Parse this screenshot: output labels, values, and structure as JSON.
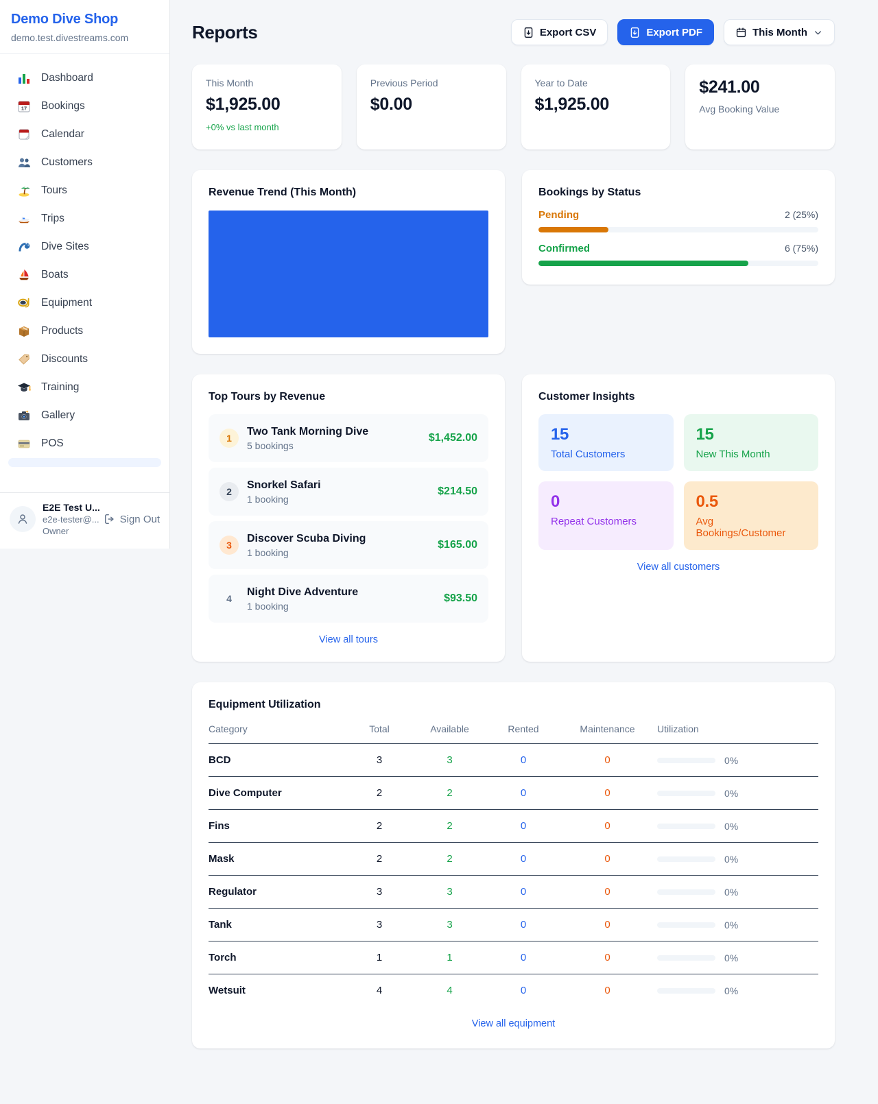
{
  "app": {
    "name": "Demo Dive Shop",
    "domain": "demo.test.divestreams.com"
  },
  "sidebar": {
    "items": [
      {
        "label": "Dashboard",
        "icon": "bar-chart-icon"
      },
      {
        "label": "Bookings",
        "icon": "calendar-date-icon"
      },
      {
        "label": "Calendar",
        "icon": "tear-off-calendar-icon"
      },
      {
        "label": "Customers",
        "icon": "people-icon"
      },
      {
        "label": "Tours",
        "icon": "island-icon"
      },
      {
        "label": "Trips",
        "icon": "speedboat-icon"
      },
      {
        "label": "Dive Sites",
        "icon": "wave-icon"
      },
      {
        "label": "Boats",
        "icon": "sailboat-icon"
      },
      {
        "label": "Equipment",
        "icon": "dive-mask-icon"
      },
      {
        "label": "Products",
        "icon": "package-icon"
      },
      {
        "label": "Discounts",
        "icon": "tag-icon"
      },
      {
        "label": "Training",
        "icon": "graduation-cap-icon"
      },
      {
        "label": "Gallery",
        "icon": "camera-icon"
      },
      {
        "label": "POS",
        "icon": "credit-card-icon"
      }
    ]
  },
  "user": {
    "name": "E2E Test U...",
    "email": "e2e-tester@...",
    "role": "Owner",
    "sign_out_label": "Sign Out"
  },
  "header": {
    "title": "Reports",
    "export_csv_label": "Export CSV",
    "export_pdf_label": "Export PDF",
    "period_label": "This Month"
  },
  "stats": [
    {
      "label": "This Month",
      "value": "$1,925.00",
      "sub": "+0% vs last month"
    },
    {
      "label": "Previous Period",
      "value": "$0.00"
    },
    {
      "label": "Year to Date",
      "value": "$1,925.00"
    },
    {
      "label": "Avg Booking Value",
      "value": "$241.00"
    }
  ],
  "revenue_trend": {
    "title": "Revenue Trend (This Month)",
    "fill_color": "#2563eb"
  },
  "bookings_by_status": {
    "title": "Bookings by Status",
    "rows": [
      {
        "label": "Pending",
        "value": "2 (25%)",
        "pct": 25,
        "color": "#d97706"
      },
      {
        "label": "Confirmed",
        "value": "6 (75%)",
        "pct": 75,
        "color": "#16a34a"
      }
    ]
  },
  "top_tours": {
    "title": "Top Tours by Revenue",
    "view_all": "View all tours",
    "rows": [
      {
        "rank": "1",
        "name": "Two Tank Morning Dive",
        "bookings": "5 bookings",
        "amount": "$1,452.00",
        "badge_bg": "#fdf3d8",
        "badge_color": "#d97706"
      },
      {
        "rank": "2",
        "name": "Snorkel Safari",
        "bookings": "1 booking",
        "amount": "$214.50",
        "badge_bg": "#e9ecf0",
        "badge_color": "#334155"
      },
      {
        "rank": "3",
        "name": "Discover Scuba Diving",
        "bookings": "1 booking",
        "amount": "$165.00",
        "badge_bg": "#ffe8d1",
        "badge_color": "#ea580c"
      },
      {
        "rank": "4",
        "name": "Night Dive Adventure",
        "bookings": "1 booking",
        "amount": "$93.50",
        "badge_bg": "transparent",
        "badge_color": "#64748b"
      }
    ]
  },
  "customer_insights": {
    "title": "Customer Insights",
    "view_all": "View all customers",
    "tiles": [
      {
        "value": "15",
        "label": "Total Customers",
        "color": "#2563eb",
        "bg": "#eaf2fe"
      },
      {
        "value": "15",
        "label": "New This Month",
        "color": "#16a34a",
        "bg": "#e9f8ef"
      },
      {
        "value": "0",
        "label": "Repeat Customers",
        "color": "#9333ea",
        "bg": "#f6ecfe"
      },
      {
        "value": "0.5",
        "label": "Avg Bookings/Customer",
        "color": "#ea580c",
        "bg": "#fdeacd"
      }
    ]
  },
  "equipment": {
    "title": "Equipment Utilization",
    "view_all": "View all equipment",
    "columns": [
      "Category",
      "Total",
      "Available",
      "Rented",
      "Maintenance",
      "Utilization"
    ],
    "rows": [
      {
        "category": "BCD",
        "total": "3",
        "available": "3",
        "rented": "0",
        "maintenance": "0",
        "utilization": "0%",
        "pct": 0
      },
      {
        "category": "Dive Computer",
        "total": "2",
        "available": "2",
        "rented": "0",
        "maintenance": "0",
        "utilization": "0%",
        "pct": 0
      },
      {
        "category": "Fins",
        "total": "2",
        "available": "2",
        "rented": "0",
        "maintenance": "0",
        "utilization": "0%",
        "pct": 0
      },
      {
        "category": "Mask",
        "total": "2",
        "available": "2",
        "rented": "0",
        "maintenance": "0",
        "utilization": "0%",
        "pct": 0
      },
      {
        "category": "Regulator",
        "total": "3",
        "available": "3",
        "rented": "0",
        "maintenance": "0",
        "utilization": "0%",
        "pct": 0
      },
      {
        "category": "Tank",
        "total": "3",
        "available": "3",
        "rented": "0",
        "maintenance": "0",
        "utilization": "0%",
        "pct": 0
      },
      {
        "category": "Torch",
        "total": "1",
        "available": "1",
        "rented": "0",
        "maintenance": "0",
        "utilization": "0%",
        "pct": 0
      },
      {
        "category": "Wetsuit",
        "total": "4",
        "available": "4",
        "rented": "0",
        "maintenance": "0",
        "utilization": "0%",
        "pct": 0
      }
    ]
  },
  "colors": {
    "accent": "#2563eb",
    "green": "#16a34a",
    "amber": "#d97706",
    "orange": "#ea580c",
    "purple": "#9333ea"
  }
}
